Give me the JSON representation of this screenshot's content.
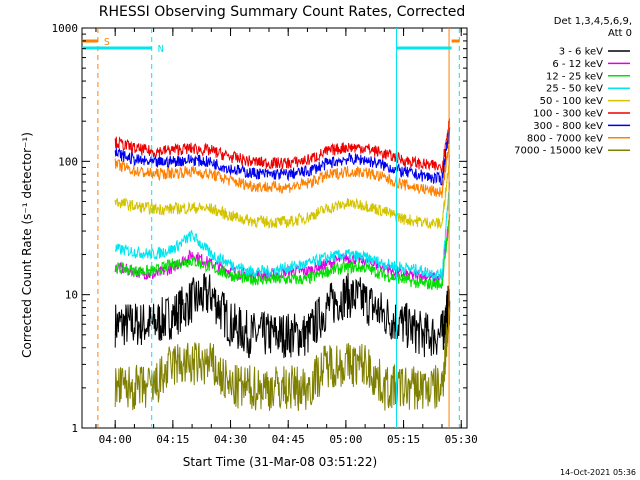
{
  "chart_data": {
    "type": "line",
    "title": "RHESSI Observing Summary Count Rates, Corrected",
    "xlabel": "Start Time (31-Mar-08 03:51:22)",
    "ylabel": "Corrected Count Rate (s⁻¹ detector⁻¹)",
    "y_scale": "log",
    "ylim": [
      1,
      1000
    ],
    "xlim": [
      "03:51:22",
      "05:31:30"
    ],
    "x_ticks": [
      "04:00",
      "04:15",
      "04:30",
      "04:45",
      "05:00",
      "05:15",
      "05:30"
    ],
    "y_ticks": [
      "1",
      "10",
      "100",
      "1000"
    ],
    "legend_header": [
      "Det 1,3,4,5,6,9,",
      "Att 0"
    ],
    "legend_position": "right",
    "footer": "14-Oct-2021 05:36",
    "flags": [
      {
        "label": "S",
        "color": "#ff8000",
        "intervals": [
          [
            "03:51:22",
            "03:55:30"
          ],
          [
            "05:27:30",
            "05:29:30"
          ]
        ]
      },
      {
        "label": "N",
        "color": "#00e5ee",
        "intervals": [
          [
            "03:51:22",
            "04:09:30"
          ],
          [
            "05:13:10",
            "05:27:30"
          ]
        ]
      }
    ],
    "vlines": [
      {
        "time": "03:55:30",
        "color": "#ff8000",
        "style": "dashed"
      },
      {
        "time": "04:09:30",
        "color": "#00e5ee",
        "style": "dashed"
      },
      {
        "time": "05:13:10",
        "color": "#00e5ee",
        "style": "solid"
      },
      {
        "time": "05:26:50",
        "color": "#ff8000",
        "style": "solid"
      },
      {
        "time": "05:29:30",
        "color": "#00e5ee",
        "style": "dashed"
      }
    ],
    "x": [
      "04:00",
      "04:05",
      "04:10",
      "04:15",
      "04:20",
      "04:25",
      "04:30",
      "04:35",
      "04:40",
      "04:45",
      "04:50",
      "04:55",
      "05:00",
      "05:05",
      "05:10",
      "05:15",
      "05:20",
      "05:25",
      "05:27"
    ],
    "series": [
      {
        "name": "3 - 6 keV",
        "color": "#000000",
        "values": [
          6,
          6,
          6,
          7,
          9,
          10,
          6,
          5,
          5,
          5,
          5,
          8,
          10,
          9,
          7,
          6,
          5,
          5,
          9
        ]
      },
      {
        "name": "6 - 12 keV",
        "color": "#e000e0",
        "values": [
          16,
          15,
          14,
          16,
          20,
          17,
          15,
          14,
          14,
          15,
          15,
          17,
          19,
          18,
          16,
          14,
          14,
          13,
          40
        ]
      },
      {
        "name": "12 - 25 keV",
        "color": "#00e000",
        "values": [
          16,
          15,
          15,
          17,
          18,
          16,
          14,
          13,
          13,
          13,
          13,
          15,
          16,
          16,
          14,
          13,
          12,
          12,
          40
        ]
      },
      {
        "name": "25 - 50 keV",
        "color": "#00e5ee",
        "values": [
          22,
          21,
          20,
          22,
          28,
          20,
          17,
          15,
          15,
          16,
          17,
          19,
          20,
          19,
          17,
          16,
          15,
          14,
          70
        ]
      },
      {
        "name": "50 - 100 keV",
        "color": "#d4c400",
        "values": [
          50,
          46,
          44,
          44,
          45,
          44,
          39,
          36,
          35,
          35,
          38,
          44,
          48,
          47,
          42,
          37,
          35,
          34,
          110
        ]
      },
      {
        "name": "100 - 300 keV",
        "color": "#ee0000",
        "values": [
          140,
          125,
          118,
          122,
          125,
          120,
          108,
          100,
          97,
          97,
          102,
          118,
          128,
          126,
          114,
          102,
          95,
          90,
          210
        ]
      },
      {
        "name": "300 - 800 keV",
        "color": "#0000ee",
        "values": [
          115,
          103,
          97,
          100,
          103,
          98,
          88,
          82,
          80,
          80,
          84,
          96,
          104,
          103,
          93,
          83,
          78,
          73,
          180
        ]
      },
      {
        "name": "800 - 7000 keV",
        "color": "#ff8000",
        "values": [
          95,
          85,
          80,
          82,
          84,
          80,
          72,
          66,
          64,
          64,
          68,
          78,
          84,
          83,
          75,
          67,
          62,
          58,
          150
        ]
      },
      {
        "name": "7000 - 15000 keV",
        "color": "#808000",
        "values": [
          2,
          2,
          2,
          3,
          3,
          3,
          2,
          2,
          2,
          2,
          2,
          3,
          3,
          3,
          2,
          2,
          2,
          2,
          8
        ]
      }
    ]
  }
}
